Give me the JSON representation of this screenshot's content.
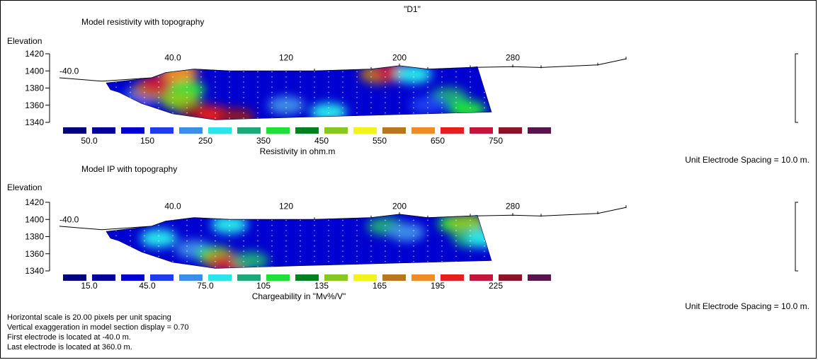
{
  "chart_data": [
    {
      "type": "heatmap",
      "panel_title": "Model resistivity with topography",
      "ylabel": "Elevation",
      "y_ticks": [
        "1420",
        "1400",
        "1380",
        "1360",
        "1340"
      ],
      "x_ticks": [
        "-40.0",
        "40.0",
        "120",
        "200",
        "280"
      ],
      "legend_label": "Resistivity in ohm.m",
      "legend_ticks": [
        "50.0",
        "150",
        "250",
        "350",
        "450",
        "550",
        "650",
        "750"
      ],
      "spacing_note": "Unit Electrode Spacing = 10.0 m.",
      "blobs": [
        {
          "x": 20,
          "y": 1372,
          "c": 6
        },
        {
          "x": 14,
          "y": 1365,
          "c": 3
        },
        {
          "x": 25,
          "y": 1378,
          "c": 11
        },
        {
          "x": 30,
          "y": 1385,
          "c": 14
        },
        {
          "x": 45,
          "y": 1398,
          "c": 12
        },
        {
          "x": 50,
          "y": 1378,
          "c": 7
        },
        {
          "x": 45,
          "y": 1365,
          "c": 9
        },
        {
          "x": 58,
          "y": 1352,
          "c": 15
        },
        {
          "x": 70,
          "y": 1348,
          "c": 13
        },
        {
          "x": 85,
          "y": 1346,
          "c": 15
        },
        {
          "x": 120,
          "y": 1360,
          "c": 4
        },
        {
          "x": 150,
          "y": 1352,
          "c": 5
        },
        {
          "x": 185,
          "y": 1396,
          "c": 11
        },
        {
          "x": 195,
          "y": 1398,
          "c": 14
        },
        {
          "x": 210,
          "y": 1396,
          "c": 5
        },
        {
          "x": 235,
          "y": 1370,
          "c": 6
        },
        {
          "x": 248,
          "y": 1355,
          "c": 7
        },
        {
          "x": 220,
          "y": 1360,
          "c": 3
        }
      ]
    },
    {
      "type": "heatmap",
      "panel_title": "Model IP with topography",
      "ylabel": "Elevation",
      "y_ticks": [
        "1420",
        "1400",
        "1380",
        "1360",
        "1340"
      ],
      "x_ticks": [
        "-40.0",
        "40.0",
        "120",
        "200",
        "280"
      ],
      "legend_label": "Chargeability in \"Mv%/V\"",
      "legend_ticks": [
        "15.0",
        "45.0",
        "75.0",
        "105",
        "135",
        "165",
        "195",
        "225"
      ],
      "spacing_note": "Unit Electrode Spacing = 10.0 m.",
      "blobs": [
        {
          "x": 30,
          "y": 1378,
          "c": 5
        },
        {
          "x": 80,
          "y": 1394,
          "c": 5
        },
        {
          "x": 55,
          "y": 1365,
          "c": 4
        },
        {
          "x": 70,
          "y": 1358,
          "c": 7
        },
        {
          "x": 75,
          "y": 1352,
          "c": 11
        },
        {
          "x": 82,
          "y": 1347,
          "c": 14
        },
        {
          "x": 95,
          "y": 1352,
          "c": 6
        },
        {
          "x": 190,
          "y": 1392,
          "c": 6
        },
        {
          "x": 205,
          "y": 1385,
          "c": 4
        },
        {
          "x": 240,
          "y": 1395,
          "c": 7
        },
        {
          "x": 248,
          "y": 1396,
          "c": 9
        },
        {
          "x": 250,
          "y": 1378,
          "c": 6
        },
        {
          "x": 260,
          "y": 1378,
          "c": 5
        }
      ]
    }
  ],
  "header": {
    "dataset_name": "\"D1\""
  },
  "legend_colors": [
    "#00007a",
    "#00009e",
    "#0000d0",
    "#1c3cf0",
    "#3c8ce8",
    "#28e6ea",
    "#1ea87a",
    "#1ee03c",
    "#00801e",
    "#86c81e",
    "#f2f21e",
    "#b4781e",
    "#f08c28",
    "#e61e1e",
    "#c8143c",
    "#8c1428",
    "#5a1450"
  ],
  "background_color_index": 2,
  "footer": {
    "lines": [
      "Horizontal scale is 20.00 pixels per unit spacing",
      "Vertical exaggeration in model section display = 0.70",
      "First electrode is located at -40.0  m.",
      "Last electrode is located at 360.0 m."
    ]
  }
}
